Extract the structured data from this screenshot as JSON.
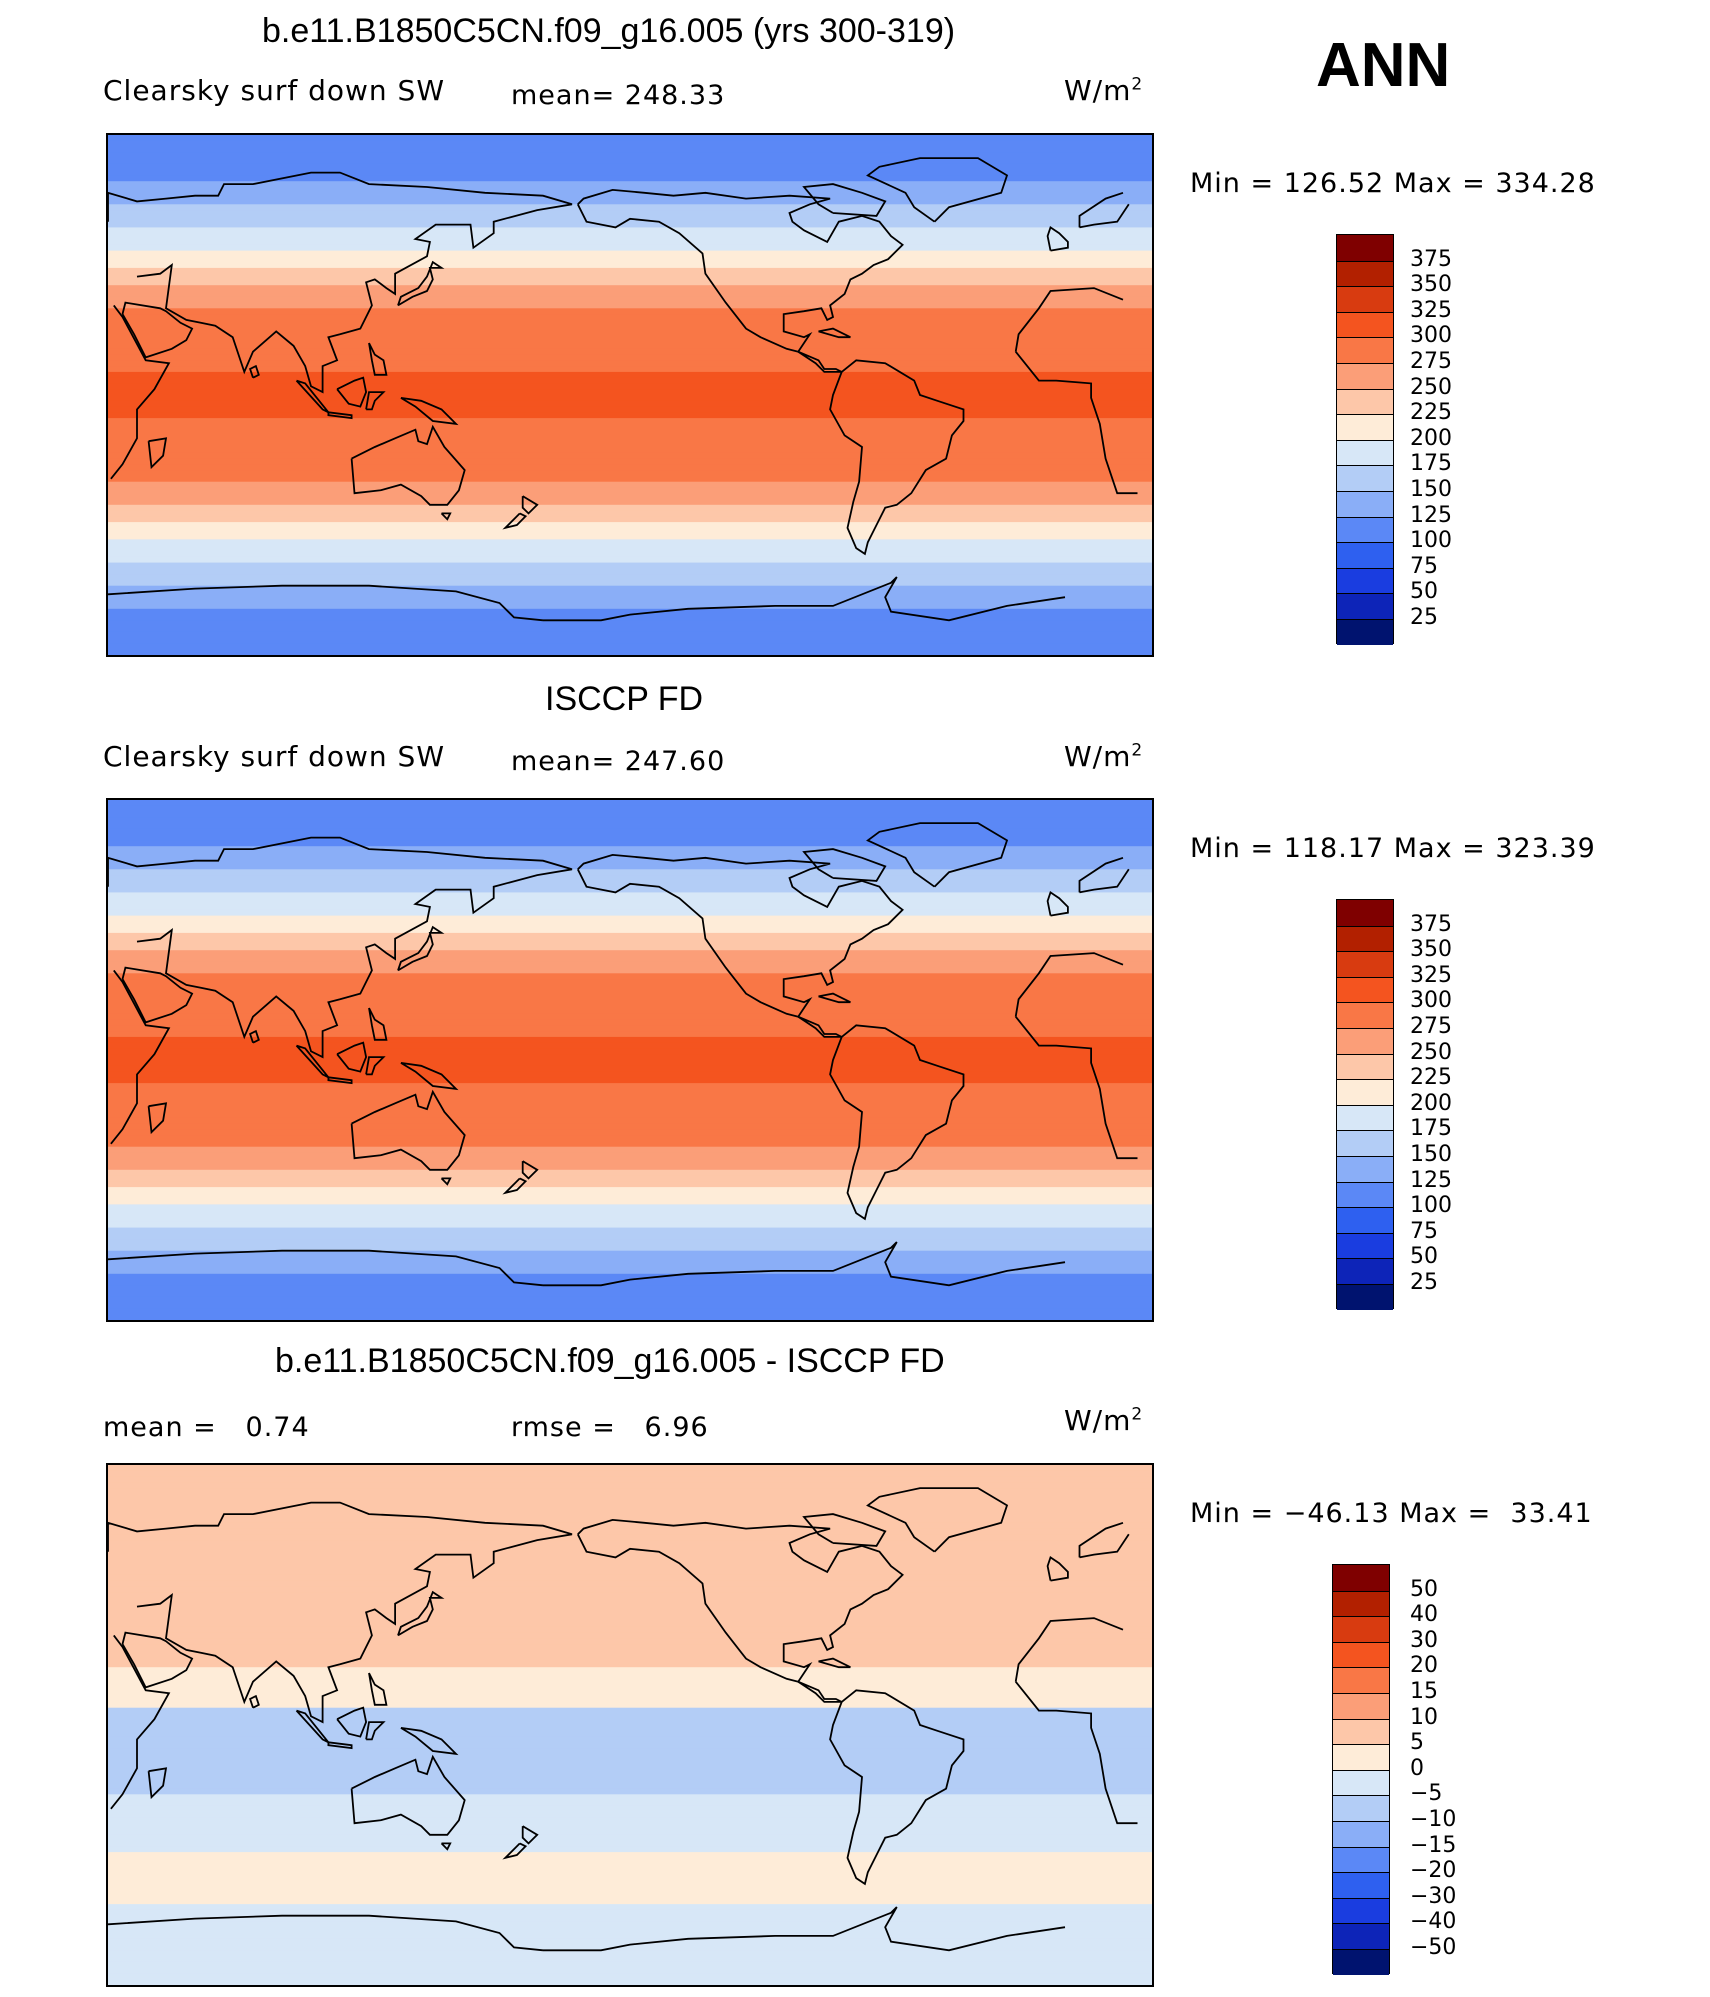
{
  "season": "ANN",
  "panels": [
    {
      "title": "b.e11.B1850C5CN.f09_g16.005 (yrs 300-319)",
      "left_label": "Clearsky surf down SW",
      "mid_label": "mean= 248.33",
      "units": "W/m",
      "units_exp": "2",
      "minmax": "Min = 126.52 Max = 334.28",
      "levels": [
        "375",
        "350",
        "325",
        "300",
        "275",
        "250",
        "225",
        "200",
        "175",
        "150",
        "125",
        "100",
        "75",
        "50",
        "25"
      ],
      "colors": [
        "#7f0000",
        "#b22000",
        "#d83b10",
        "#f4541f",
        "#f97746",
        "#fb9e78",
        "#fdc7a9",
        "#feecd8",
        "#d7e7f7",
        "#b3cdf6",
        "#8aaef7",
        "#5b88f6",
        "#2e60f0",
        "#1a3de0",
        "#0d24b8",
        "#00136f"
      ],
      "field": "sw"
    },
    {
      "title": "ISCCP FD",
      "left_label": "Clearsky surf down SW",
      "mid_label": "mean= 247.60",
      "units": "W/m",
      "units_exp": "2",
      "minmax": "Min = 118.17 Max = 323.39",
      "levels": [
        "375",
        "350",
        "325",
        "300",
        "275",
        "250",
        "225",
        "200",
        "175",
        "150",
        "125",
        "100",
        "75",
        "50",
        "25"
      ],
      "colors": [
        "#7f0000",
        "#b22000",
        "#d83b10",
        "#f4541f",
        "#f97746",
        "#fb9e78",
        "#fdc7a9",
        "#feecd8",
        "#d7e7f7",
        "#b3cdf6",
        "#8aaef7",
        "#5b88f6",
        "#2e60f0",
        "#1a3de0",
        "#0d24b8",
        "#00136f"
      ],
      "field": "sw"
    },
    {
      "title": "b.e11.B1850C5CN.f09_g16.005 - ISCCP FD",
      "left_label": "mean =   0.74",
      "mid_label": "rmse =   6.96",
      "units": "W/m",
      "units_exp": "2",
      "minmax": "Min = −46.13 Max =  33.41",
      "levels": [
        "50",
        "40",
        "30",
        "20",
        "15",
        "10",
        "5",
        "0",
        "−5",
        "−10",
        "−15",
        "−20",
        "−30",
        "−40",
        "−50"
      ],
      "colors": [
        "#7f0000",
        "#b22000",
        "#d83b10",
        "#f4541f",
        "#f97746",
        "#fb9e78",
        "#fdc7a9",
        "#feecd8",
        "#d7e7f7",
        "#b3cdf6",
        "#8aaef7",
        "#5b88f6",
        "#2e60f0",
        "#1a3de0",
        "#0d24b8",
        "#00136f"
      ],
      "field": "diff"
    }
  ]
}
